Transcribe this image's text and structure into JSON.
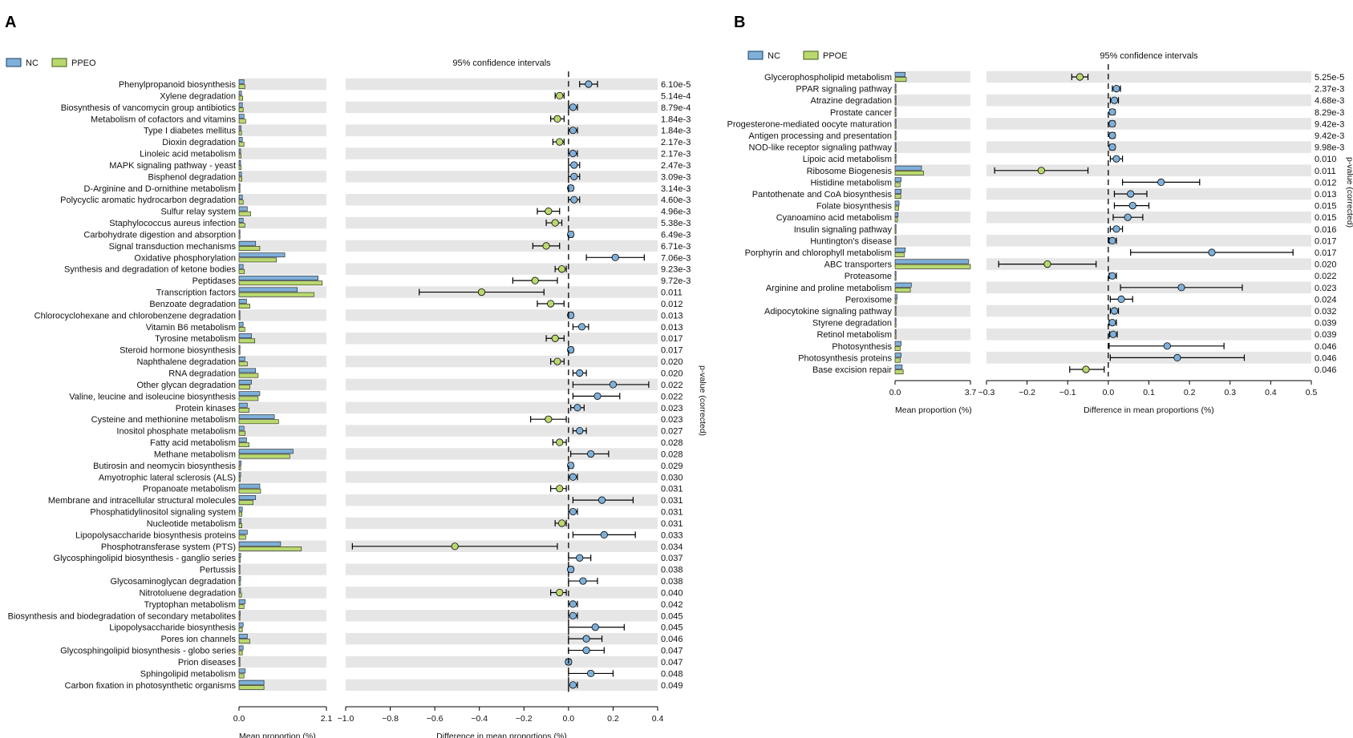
{
  "colors": {
    "nc": "#7eb0d9",
    "ppeo": "#b9d96e",
    "band": "#e6e6e6"
  },
  "chart_data": [
    {
      "panel": "A",
      "type": "extended_error_bar",
      "legend": [
        "NC",
        "PPEO"
      ],
      "ci_title": "95% confidence intervals",
      "left_xlabel": "Mean proportion (%)",
      "right_xlabel": "Difference in mean proportions (%)",
      "pvalue_label": "p-value (corrected)",
      "prop_range": [
        0.0,
        2.1
      ],
      "prop_ticks": [
        "0.0",
        "2.1"
      ],
      "diff_range": [
        -1.0,
        0.4
      ],
      "diff_ticks": [
        -1.0,
        -0.8,
        -0.6,
        -0.4,
        -0.2,
        0.0,
        0.2,
        0.4
      ],
      "diff_tick_labels": [
        "−1.0",
        "−0.8",
        "−0.6",
        "−0.4",
        "−0.2",
        "0.0",
        "0.2",
        "0.4"
      ],
      "categories": [
        "Phenylpropanoid biosynthesis",
        "Xylene degradation",
        "Biosynthesis of vancomycin group antibiotics",
        "Metabolism of cofactors and vitamins",
        "Type I diabetes mellitus",
        "Dioxin degradation",
        "Linoleic acid metabolism",
        "MAPK signaling pathway - yeast",
        "Bisphenol degradation",
        "D-Arginine and D-ornithine metabolism",
        "Polycyclic aromatic hydrocarbon degradation",
        "Sulfur relay system",
        "Staphylococcus aureus infection",
        "Carbohydrate digestion and absorption",
        "Signal transduction mechanisms",
        "Oxidative phosphorylation",
        "Synthesis and degradation of ketone bodies",
        "Peptidases",
        "Transcription factors",
        "Benzoate degradation",
        "Chlorocyclohexane and chlorobenzene degradation",
        "Vitamin B6 metabolism",
        "Tyrosine metabolism",
        "Steroid hormone biosynthesis",
        "Naphthalene degradation",
        "RNA degradation",
        "Other glycan degradation",
        "Valine, leucine and isoleucine biosynthesis",
        "Protein kinases",
        "Cysteine and methionine metabolism",
        "Inositol phosphate metabolism",
        "Fatty acid metabolism",
        "Methane metabolism",
        "Butirosin and neomycin biosynthesis",
        "Amyotrophic lateral sclerosis (ALS)",
        "Propanoate metabolism",
        "Membrane and intracellular structural molecules",
        "Phosphatidylinositol signaling system",
        "Nucleotide metabolism",
        "Lipopolysaccharide biosynthesis proteins",
        "Phosphotransferase system (PTS)",
        "Glycosphingolipid biosynthesis - ganglio series",
        "Pertussis",
        "Glycosaminoglycan degradation",
        "Nitrotoluene degradation",
        "Tryptophan metabolism",
        "Biosynthesis and biodegradation of secondary metabolites",
        "Lipopolysaccharide biosynthesis",
        "Pores ion channels",
        "Glycosphingolipid biosynthesis - globo series",
        "Prion diseases",
        "Sphingolipid metabolism",
        "Carbon fixation in photosynthetic organisms"
      ],
      "nc": [
        0.12,
        0.06,
        0.08,
        0.12,
        0.05,
        0.08,
        0.04,
        0.04,
        0.06,
        0.02,
        0.08,
        0.2,
        0.1,
        0.02,
        0.4,
        1.1,
        0.1,
        1.9,
        1.4,
        0.18,
        0.02,
        0.1,
        0.3,
        0.02,
        0.14,
        0.4,
        0.3,
        0.5,
        0.2,
        0.85,
        0.12,
        0.18,
        1.3,
        0.05,
        0.04,
        0.5,
        0.4,
        0.08,
        0.05,
        0.2,
        1.0,
        0.04,
        0.02,
        0.04,
        0.04,
        0.15,
        0.03,
        0.1,
        0.2,
        0.1,
        0.02,
        0.15,
        0.6
      ],
      "ppeo": [
        0.14,
        0.09,
        0.1,
        0.16,
        0.06,
        0.12,
        0.05,
        0.05,
        0.07,
        0.02,
        0.1,
        0.28,
        0.14,
        0.02,
        0.5,
        0.9,
        0.13,
        2.0,
        1.8,
        0.26,
        0.02,
        0.14,
        0.38,
        0.02,
        0.2,
        0.46,
        0.26,
        0.46,
        0.24,
        0.95,
        0.15,
        0.24,
        1.22,
        0.04,
        0.03,
        0.52,
        0.34,
        0.07,
        0.07,
        0.16,
        1.5,
        0.03,
        0.02,
        0.03,
        0.06,
        0.12,
        0.02,
        0.08,
        0.26,
        0.08,
        0.01,
        0.12,
        0.6
      ],
      "diff": [
        0.09,
        -0.04,
        0.02,
        -0.05,
        0.02,
        -0.04,
        0.02,
        0.025,
        0.025,
        0.01,
        0.025,
        -0.09,
        -0.06,
        0.01,
        -0.1,
        0.21,
        -0.03,
        -0.15,
        -0.39,
        -0.08,
        0.01,
        0.06,
        -0.06,
        0.01,
        -0.05,
        0.05,
        0.2,
        0.13,
        0.04,
        -0.09,
        0.05,
        -0.04,
        0.1,
        0.01,
        0.02,
        -0.04,
        0.15,
        0.02,
        -0.03,
        0.16,
        -0.51,
        0.05,
        0.01,
        0.065,
        -0.04,
        0.02,
        0.02,
        0.12,
        0.08,
        0.08,
        0.0,
        0.1,
        0.02
      ],
      "ci_low": [
        0.05,
        -0.06,
        0.0,
        -0.08,
        0.0,
        -0.07,
        0.0,
        0.0,
        0.0,
        0.0,
        0.0,
        -0.14,
        -0.1,
        0.0,
        -0.16,
        0.08,
        -0.06,
        -0.25,
        -0.67,
        -0.14,
        0.0,
        0.02,
        -0.1,
        0.0,
        -0.08,
        0.02,
        0.02,
        0.02,
        0.01,
        -0.17,
        0.02,
        -0.07,
        0.01,
        0.0,
        0.0,
        -0.08,
        0.02,
        0.0,
        -0.06,
        0.02,
        -0.97,
        0.0,
        0.0,
        0.0,
        -0.08,
        0.0,
        0.0,
        0.0,
        0.0,
        0.0,
        -0.01,
        0.0,
        0.0
      ],
      "ci_high": [
        0.13,
        -0.02,
        0.04,
        -0.02,
        0.04,
        -0.02,
        0.04,
        0.05,
        0.05,
        0.02,
        0.05,
        -0.04,
        -0.03,
        0.02,
        -0.04,
        0.34,
        -0.01,
        -0.05,
        -0.11,
        -0.02,
        0.02,
        0.09,
        -0.02,
        0.02,
        -0.02,
        0.08,
        0.36,
        0.23,
        0.07,
        -0.01,
        0.08,
        -0.01,
        0.18,
        0.02,
        0.04,
        -0.01,
        0.29,
        0.04,
        -0.01,
        0.3,
        -0.05,
        0.1,
        0.02,
        0.13,
        -0.01,
        0.04,
        0.04,
        0.25,
        0.15,
        0.16,
        0.01,
        0.2,
        0.04
      ],
      "pvalues": [
        "6.10e-5",
        "5.14e-4",
        "8.79e-4",
        "1.84e-3",
        "1.84e-3",
        "2.17e-3",
        "2.17e-3",
        "2.47e-3",
        "3.09e-3",
        "3.14e-3",
        "4.60e-3",
        "4.96e-3",
        "5.38e-3",
        "6.49e-3",
        "6.71e-3",
        "7.06e-3",
        "9.23e-3",
        "9.72e-3",
        "0.011",
        "0.012",
        "0.013",
        "0.013",
        "0.017",
        "0.017",
        "0.020",
        "0.020",
        "0.022",
        "0.022",
        "0.023",
        "0.023",
        "0.027",
        "0.028",
        "0.028",
        "0.029",
        "0.030",
        "0.031",
        "0.031",
        "0.031",
        "0.031",
        "0.033",
        "0.034",
        "0.037",
        "0.038",
        "0.038",
        "0.040",
        "0.042",
        "0.045",
        "0.045",
        "0.046",
        "0.047",
        "0.047",
        "0.048",
        "0.049"
      ]
    },
    {
      "panel": "B",
      "type": "extended_error_bar",
      "legend": [
        "NC",
        "PPOE"
      ],
      "ci_title": "95% confidence intervals",
      "left_xlabel": "Mean proportion (%)",
      "right_xlabel": "Difference in mean proportions (%)",
      "pvalue_label": "p-value (corrected)",
      "prop_range": [
        0.0,
        3.7
      ],
      "prop_ticks": [
        "0.0",
        "3.7"
      ],
      "diff_range": [
        -0.3,
        0.5
      ],
      "diff_ticks": [
        -0.3,
        -0.2,
        -0.1,
        0.0,
        0.1,
        0.2,
        0.3,
        0.4,
        0.5
      ],
      "diff_tick_labels": [
        "−0.3",
        "−0.2",
        "−0.1",
        "0.0",
        "0.1",
        "0.2",
        "0.3",
        "0.4",
        "0.5"
      ],
      "categories": [
        "Glycerophospholipid metabolism",
        "PPAR signaling pathway",
        "Atrazine degradation",
        "Prostate cancer",
        "Progesterone-mediated oocyte maturation",
        "Antigen processing and presentation",
        "NOD-like receptor signaling pathway",
        "Lipoic acid metabolism",
        "Ribosome Biogenesis",
        "Histidine metabolism",
        "Pantothenate and CoA biosynthesis",
        "Folate biosynthesis",
        "Cyanoamino acid metabolism",
        "Insulin signaling pathway",
        "Huntington's disease",
        "Porphyrin and chlorophyll metabolism",
        "ABC transporters",
        "Proteasome",
        "Arginine and proline metabolism",
        "Peroxisome",
        "Adipocytokine signaling pathway",
        "Styrene degradation",
        "Retinol metabolism",
        "Photosynthesis",
        "Photosynthesis proteins",
        "Base excision repair"
      ],
      "nc": [
        0.5,
        0.04,
        0.04,
        0.02,
        0.02,
        0.02,
        0.02,
        0.04,
        1.3,
        0.3,
        0.3,
        0.2,
        0.15,
        0.04,
        0.03,
        0.5,
        3.6,
        0.04,
        0.8,
        0.1,
        0.03,
        0.03,
        0.03,
        0.3,
        0.3,
        0.35
      ],
      "ppeo": [
        0.55,
        0.02,
        0.02,
        0.01,
        0.01,
        0.01,
        0.01,
        0.02,
        1.4,
        0.25,
        0.28,
        0.18,
        0.12,
        0.02,
        0.02,
        0.45,
        3.7,
        0.02,
        0.75,
        0.08,
        0.02,
        0.02,
        0.02,
        0.25,
        0.25,
        0.4
      ],
      "diff": [
        -0.07,
        0.02,
        0.015,
        0.01,
        0.01,
        0.01,
        0.01,
        0.02,
        -0.165,
        0.13,
        0.055,
        0.06,
        0.048,
        0.02,
        0.01,
        0.255,
        -0.15,
        0.01,
        0.18,
        0.032,
        0.015,
        0.01,
        0.012,
        0.145,
        0.17,
        -0.055
      ],
      "ci_low": [
        -0.09,
        0.01,
        0.005,
        0.004,
        0.004,
        0.004,
        0.004,
        0.005,
        -0.28,
        0.035,
        0.015,
        0.015,
        0.012,
        0.005,
        0.002,
        0.055,
        -0.27,
        0.002,
        0.03,
        0.005,
        0.005,
        0.002,
        0.003,
        0.002,
        0.005,
        -0.095
      ],
      "ci_high": [
        -0.05,
        0.03,
        0.025,
        0.016,
        0.016,
        0.016,
        0.016,
        0.035,
        -0.05,
        0.225,
        0.095,
        0.1,
        0.085,
        0.035,
        0.02,
        0.455,
        -0.03,
        0.02,
        0.33,
        0.06,
        0.025,
        0.02,
        0.022,
        0.285,
        0.335,
        -0.01
      ],
      "pvalues": [
        "5.25e-5",
        "2.37e-3",
        "4.68e-3",
        "8.29e-3",
        "9.42e-3",
        "9.42e-3",
        "9.98e-3",
        "0.010",
        "0.011",
        "0.012",
        "0.013",
        "0.015",
        "0.015",
        "0.016",
        "0.017",
        "0.017",
        "0.020",
        "0.022",
        "0.023",
        "0.024",
        "0.032",
        "0.039",
        "0.039",
        "0.046",
        "0.046",
        "0.046"
      ]
    }
  ]
}
